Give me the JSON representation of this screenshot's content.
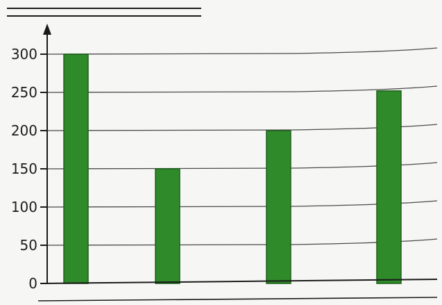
{
  "chart_data": {
    "type": "bar",
    "categories": [
      "",
      "",
      "",
      ""
    ],
    "values": [
      300,
      150,
      200,
      252
    ],
    "yticks": [
      0,
      50,
      100,
      150,
      200,
      250,
      300
    ],
    "ylim": [
      0,
      300
    ],
    "grid": true,
    "bar_color": "#2f8a2a",
    "bar_edge_color": "#1f5e1c",
    "grid_color": "#4a4a4a",
    "axis_color": "#1a1a1a"
  }
}
